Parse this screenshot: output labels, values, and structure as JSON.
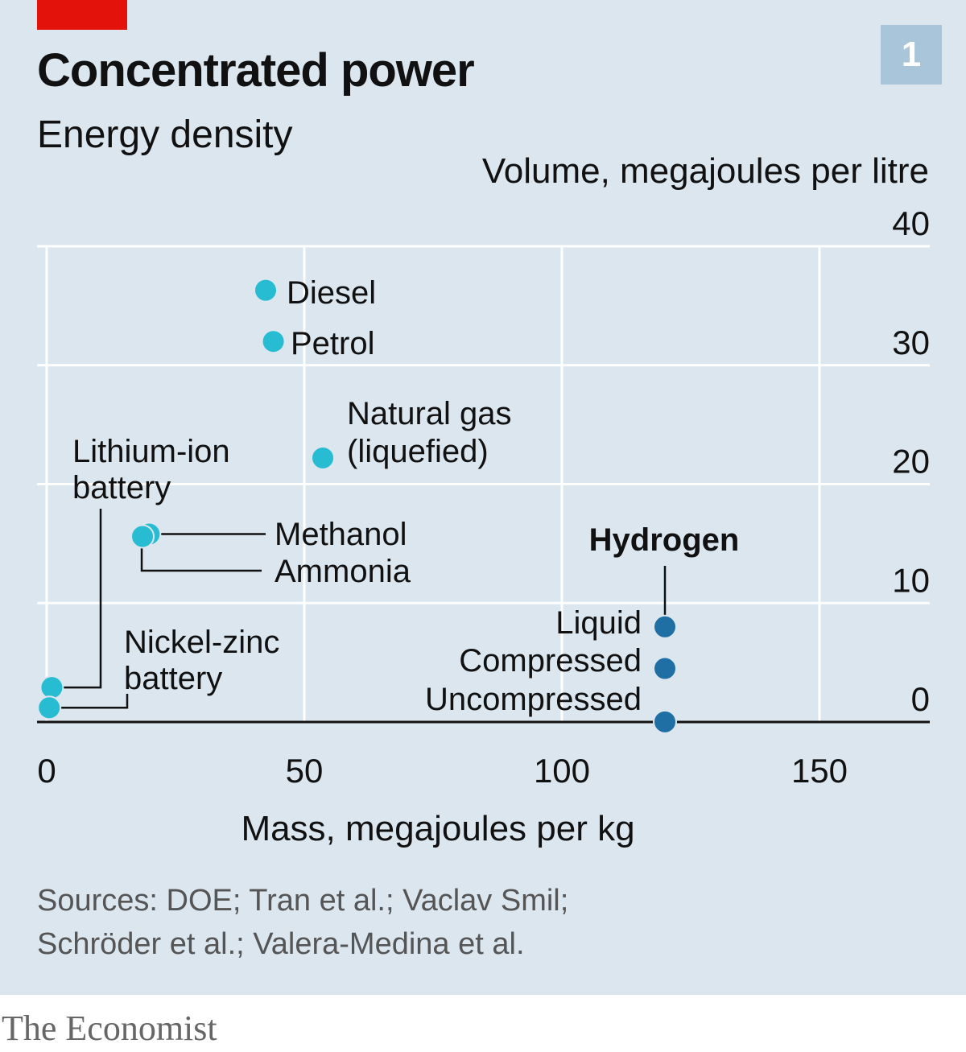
{
  "header": {
    "title": "Concentrated power",
    "subtitle": "Energy density",
    "badge": "1"
  },
  "sources_lines": [
    "Sources: DOE; Tran et al.; Vaclav Smil;",
    "Schröder et al.; Valera-Medina et al."
  ],
  "footer": {
    "publisher": "The Economist"
  },
  "colors": {
    "fuel": "#27bcd2",
    "hydrogen": "#1f6fa5",
    "hydrogen_label": "#1f6fa5",
    "background": "#dbe6ef",
    "accent": "#e3120b"
  },
  "chart_data": {
    "type": "scatter",
    "title": "Concentrated power",
    "subtitle": "Energy density",
    "xlabel": "Mass, megajoules per kg",
    "ylabel": "Volume, megajoules per litre",
    "xlim": [
      0,
      170
    ],
    "ylim": [
      0,
      40
    ],
    "xticks": [
      0,
      50,
      100,
      150
    ],
    "yticks": [
      0,
      10,
      20,
      30,
      40
    ],
    "grid": true,
    "points": [
      {
        "name": "Diesel",
        "x": 42.5,
        "y": 36.3,
        "group": "fuel"
      },
      {
        "name": "Petrol",
        "x": 44,
        "y": 32,
        "group": "fuel"
      },
      {
        "name": "Natural gas (liquefied)",
        "x": 53.6,
        "y": 22.2,
        "group": "fuel"
      },
      {
        "name": "Methanol",
        "x": 19.9,
        "y": 15.8,
        "group": "fuel"
      },
      {
        "name": "Ammonia",
        "x": 18.6,
        "y": 15.6,
        "group": "fuel"
      },
      {
        "name": "Lithium-ion battery",
        "x": 1.0,
        "y": 2.9,
        "group": "fuel"
      },
      {
        "name": "Nickel-zinc battery",
        "x": 0.5,
        "y": 1.2,
        "group": "fuel"
      },
      {
        "name": "Liquid",
        "x": 120,
        "y": 8.0,
        "group": "hydrogen"
      },
      {
        "name": "Compressed",
        "x": 120,
        "y": 4.5,
        "group": "hydrogen"
      },
      {
        "name": "Uncompressed",
        "x": 120,
        "y": 0.01,
        "group": "hydrogen"
      }
    ],
    "annotations": {
      "hydrogen_group_label": "Hydrogen"
    }
  }
}
